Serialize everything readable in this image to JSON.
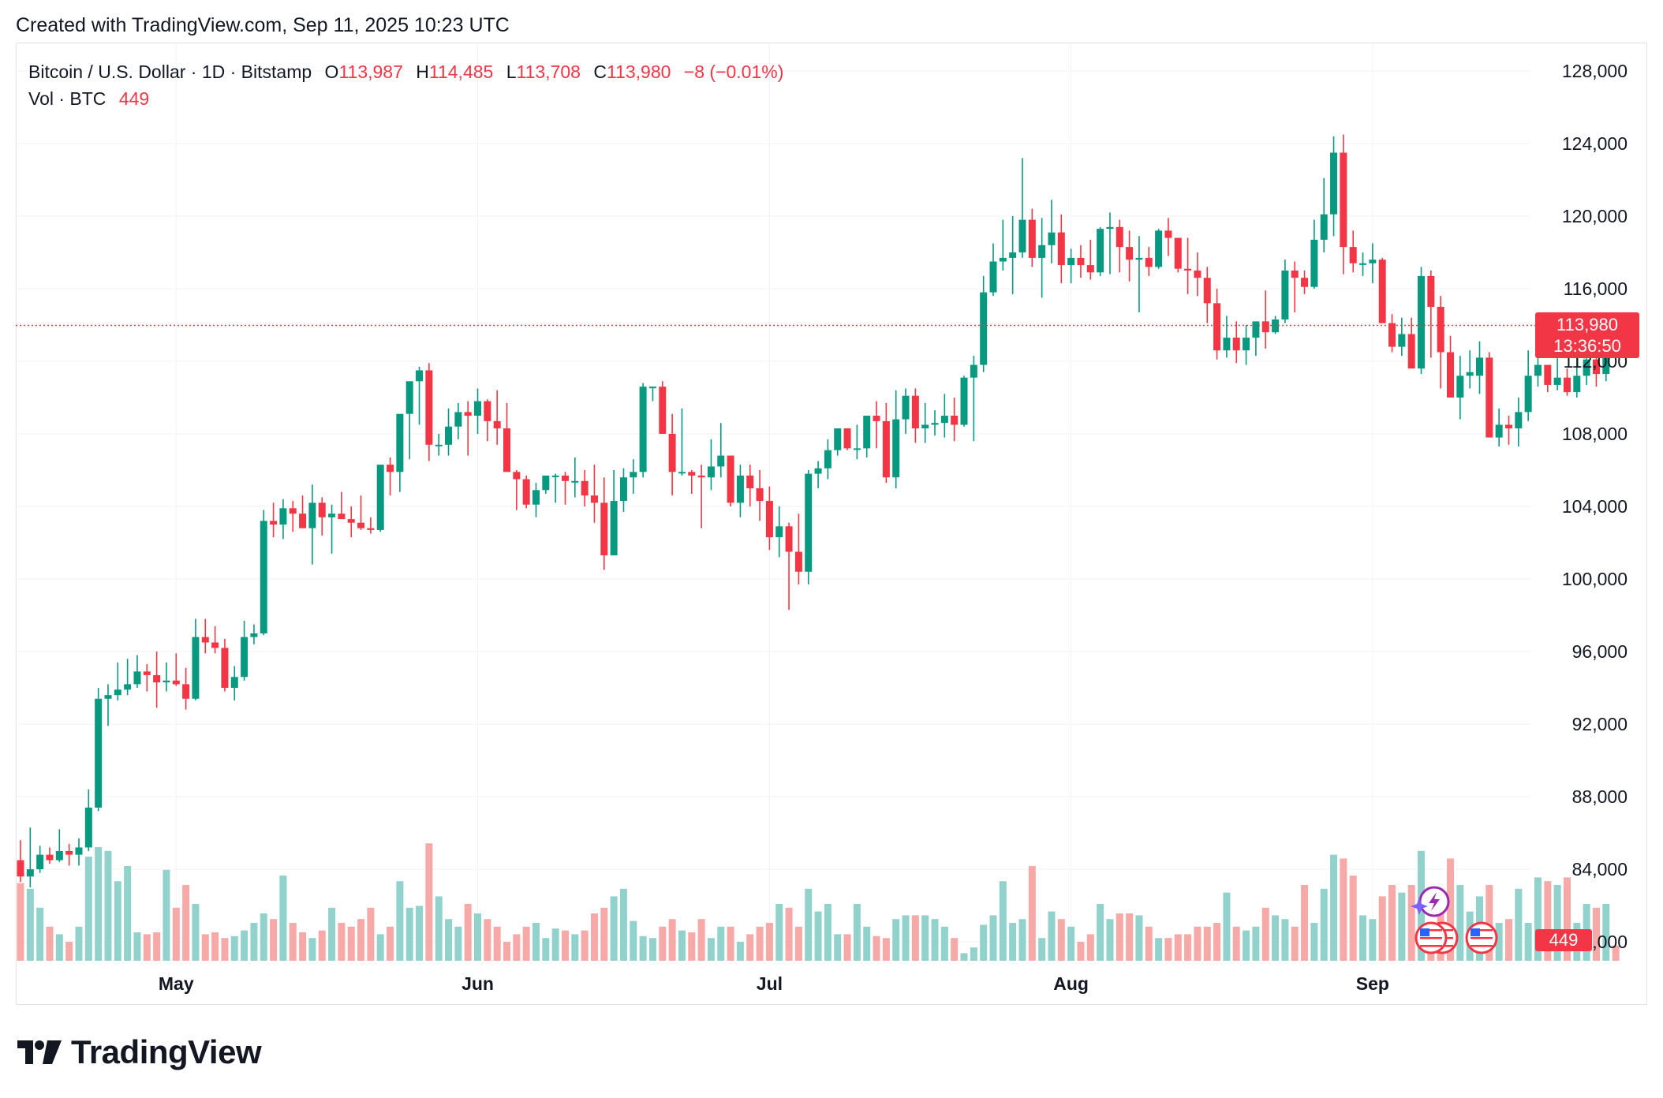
{
  "header": {
    "created_text": "Created with TradingView.com, Sep 11, 2025 10:23 UTC"
  },
  "legend": {
    "symbol_line": "Bitcoin / U.S. Dollar · 1D · Bitstamp",
    "open_label": "O",
    "open_value": "113,987",
    "high_label": "H",
    "high_value": "114,485",
    "low_label": "L",
    "low_value": "113,708",
    "close_label": "C",
    "close_value": "113,980",
    "change": "−8 (−0.01%)",
    "vol_label": "Vol · BTC",
    "vol_value": "449"
  },
  "price_tag": {
    "price": "113,980",
    "countdown": "13:36:50"
  },
  "volume_tag": {
    "value": "449"
  },
  "footer": {
    "brand": "TradingView"
  },
  "colors": {
    "up": "#089981",
    "down": "#f23645",
    "up_vol": "#92d2cc",
    "down_vol": "#f7a9a7",
    "grid": "#f0f3fa"
  },
  "chart_data": {
    "type": "candlestick",
    "interval": "1D",
    "y_axis_ticks": [
      "128,000",
      "124,000",
      "120,000",
      "116,000",
      "112,000",
      "108,000",
      "104,000",
      "100,000",
      "96,000",
      "92,000",
      "88,000",
      "84,000",
      "80,000"
    ],
    "ylim": [
      80000,
      128000
    ],
    "x_axis_ticks": [
      {
        "label": "May",
        "date": "2025-05-01"
      },
      {
        "label": "Jun",
        "date": "2025-06-01"
      },
      {
        "label": "Jul",
        "date": "2025-07-01"
      },
      {
        "label": "Aug",
        "date": "2025-08-01"
      },
      {
        "label": "Sep",
        "date": "2025-09-01"
      }
    ],
    "last_close": 113980,
    "start_date": "2025-04-15",
    "ohlcv": [
      [
        84500,
        85600,
        83300,
        83600,
        41
      ],
      [
        83600,
        86300,
        83000,
        84000,
        38
      ],
      [
        84000,
        85300,
        83800,
        84800,
        28
      ],
      [
        84800,
        85200,
        84300,
        84500,
        18
      ],
      [
        84500,
        86200,
        84400,
        85000,
        14
      ],
      [
        85000,
        85400,
        84200,
        84800,
        10
      ],
      [
        84800,
        85700,
        84200,
        85200,
        18
      ],
      [
        85200,
        88400,
        85000,
        87400,
        55
      ],
      [
        87400,
        94000,
        87200,
        93400,
        60
      ],
      [
        93400,
        94200,
        91900,
        93600,
        58
      ],
      [
        93600,
        95400,
        93300,
        93900,
        42
      ],
      [
        93900,
        95600,
        93600,
        94200,
        50
      ],
      [
        94200,
        95800,
        94000,
        94900,
        15
      ],
      [
        94900,
        95300,
        93800,
        94700,
        14
      ],
      [
        94700,
        96000,
        92900,
        94300,
        15
      ],
      [
        94300,
        95400,
        93800,
        94400,
        48
      ],
      [
        94400,
        95900,
        94100,
        94200,
        28
      ],
      [
        94200,
        95100,
        92800,
        93400,
        40
      ],
      [
        93400,
        97800,
        93300,
        96800,
        30
      ],
      [
        96800,
        97800,
        95900,
        96500,
        14
      ],
      [
        96500,
        97400,
        95900,
        96200,
        15
      ],
      [
        96200,
        96700,
        93800,
        94000,
        12
      ],
      [
        94000,
        95200,
        93300,
        94600,
        13
      ],
      [
        94600,
        97700,
        94400,
        96800,
        16
      ],
      [
        96800,
        97500,
        96400,
        97000,
        20
      ],
      [
        97000,
        103800,
        96900,
        103200,
        25
      ],
      [
        103200,
        104200,
        102300,
        103000,
        22
      ],
      [
        103000,
        104400,
        102200,
        103900,
        45
      ],
      [
        103900,
        104300,
        102600,
        103600,
        20
      ],
      [
        103600,
        104600,
        102800,
        102800,
        15
      ],
      [
        102800,
        105200,
        100800,
        104200,
        12
      ],
      [
        104200,
        104500,
        102400,
        103400,
        16
      ],
      [
        103400,
        104100,
        101400,
        103600,
        28
      ],
      [
        103600,
        104800,
        103300,
        103300,
        20
      ],
      [
        103300,
        104000,
        102300,
        103100,
        18
      ],
      [
        103100,
        104600,
        102700,
        102800,
        22
      ],
      [
        102800,
        103400,
        102500,
        102700,
        28
      ],
      [
        102700,
        106300,
        102600,
        106300,
        14
      ],
      [
        106300,
        106700,
        104600,
        105900,
        18
      ],
      [
        105900,
        108300,
        104800,
        109100,
        42
      ],
      [
        109100,
        109900,
        106600,
        110900,
        28
      ],
      [
        110900,
        111700,
        108500,
        111500,
        29
      ],
      [
        111500,
        111900,
        106500,
        107400,
        62
      ],
      [
        107400,
        108000,
        106800,
        107400,
        34
      ],
      [
        107400,
        109400,
        106800,
        108400,
        22
      ],
      [
        108400,
        109700,
        107700,
        109200,
        18
      ],
      [
        109200,
        109800,
        106800,
        109000,
        30
      ],
      [
        109000,
        110500,
        108000,
        109800,
        25
      ],
      [
        109800,
        109900,
        107600,
        108700,
        22
      ],
      [
        108700,
        110400,
        107400,
        108300,
        18
      ],
      [
        108300,
        109700,
        106300,
        105900,
        10
      ],
      [
        105900,
        106000,
        103800,
        105500,
        14
      ],
      [
        105500,
        105700,
        103900,
        104100,
        18
      ],
      [
        104100,
        105300,
        103400,
        104900,
        20
      ],
      [
        104900,
        105700,
        104700,
        105700,
        12
      ],
      [
        105700,
        105800,
        104200,
        105700,
        17
      ],
      [
        105700,
        105900,
        104100,
        105400,
        16
      ],
      [
        105400,
        106700,
        104500,
        105400,
        14
      ],
      [
        105400,
        106000,
        104000,
        104600,
        16
      ],
      [
        104600,
        106300,
        103100,
        104200,
        25
      ],
      [
        104200,
        105600,
        100500,
        101300,
        28
      ],
      [
        101300,
        106000,
        101300,
        104300,
        34
      ],
      [
        104300,
        106100,
        103700,
        105600,
        38
      ],
      [
        105600,
        106600,
        104700,
        105900,
        21
      ],
      [
        105900,
        110800,
        105600,
        110600,
        13
      ],
      [
        110600,
        110600,
        109800,
        110600,
        12
      ],
      [
        110600,
        110900,
        108700,
        108000,
        18
      ],
      [
        108000,
        109100,
        104600,
        105900,
        22
      ],
      [
        105900,
        109400,
        105700,
        105900,
        16
      ],
      [
        105900,
        106000,
        104700,
        105700,
        15
      ],
      [
        105700,
        106300,
        102800,
        105600,
        22
      ],
      [
        105600,
        107700,
        104900,
        106200,
        12
      ],
      [
        106200,
        108600,
        105600,
        106800,
        18
      ],
      [
        106800,
        106600,
        104000,
        104200,
        18
      ],
      [
        104200,
        106300,
        103400,
        105700,
        10
      ],
      [
        105700,
        106300,
        104000,
        105000,
        14
      ],
      [
        105000,
        106000,
        103200,
        104300,
        18
      ],
      [
        104300,
        105100,
        101600,
        102300,
        20
      ],
      [
        102300,
        104000,
        101200,
        102900,
        30
      ],
      [
        102900,
        103100,
        98300,
        101500,
        28
      ],
      [
        101500,
        103600,
        99700,
        100400,
        18
      ],
      [
        100400,
        106000,
        99700,
        105800,
        38
      ],
      [
        105800,
        106500,
        105000,
        106100,
        26
      ],
      [
        106100,
        107700,
        105500,
        107100,
        30
      ],
      [
        107100,
        108200,
        106800,
        108300,
        14
      ],
      [
        108300,
        108300,
        107100,
        107200,
        14
      ],
      [
        107200,
        108500,
        106600,
        107200,
        30
      ],
      [
        107200,
        108900,
        106700,
        109000,
        18
      ],
      [
        109000,
        109800,
        107200,
        108700,
        13
      ],
      [
        108700,
        109700,
        105300,
        105600,
        12
      ],
      [
        105600,
        110400,
        105000,
        108800,
        22
      ],
      [
        108800,
        110500,
        108000,
        110100,
        24
      ],
      [
        110100,
        110500,
        107500,
        108300,
        24
      ],
      [
        108300,
        109700,
        107500,
        108500,
        24
      ],
      [
        108500,
        109300,
        107900,
        108600,
        22
      ],
      [
        108600,
        110200,
        107800,
        109000,
        18
      ],
      [
        109000,
        110000,
        107600,
        108500,
        12
      ],
      [
        108500,
        111200,
        108400,
        111100,
        4
      ],
      [
        111100,
        112300,
        107600,
        111800,
        7
      ],
      [
        111800,
        116700,
        111400,
        115800,
        19
      ],
      [
        115800,
        118500,
        115600,
        117500,
        24
      ],
      [
        117500,
        119800,
        117000,
        117700,
        42
      ],
      [
        117700,
        120000,
        115700,
        118000,
        20
      ],
      [
        118000,
        123200,
        117700,
        119800,
        22
      ],
      [
        119800,
        120400,
        117200,
        117700,
        50
      ],
      [
        117700,
        119900,
        115500,
        118400,
        12
      ],
      [
        118400,
        120900,
        117400,
        119100,
        26
      ],
      [
        119100,
        120100,
        116300,
        117300,
        22
      ],
      [
        117300,
        118200,
        116300,
        117700,
        18
      ],
      [
        117700,
        118400,
        116600,
        117300,
        10
      ],
      [
        117300,
        118700,
        116500,
        116900,
        14
      ],
      [
        116900,
        119400,
        116700,
        119300,
        30
      ],
      [
        119300,
        120200,
        116800,
        119400,
        22
      ],
      [
        119400,
        119800,
        116900,
        118300,
        25
      ],
      [
        118300,
        119200,
        116400,
        117600,
        25
      ],
      [
        117600,
        118900,
        114700,
        117700,
        24
      ],
      [
        117700,
        118300,
        116700,
        117200,
        18
      ],
      [
        117200,
        119300,
        117100,
        119200,
        12
      ],
      [
        119200,
        119900,
        117800,
        118800,
        12
      ],
      [
        118800,
        118800,
        116900,
        117100,
        14
      ],
      [
        117100,
        118800,
        115700,
        117000,
        14
      ],
      [
        117000,
        118000,
        115600,
        116600,
        18
      ],
      [
        116600,
        117200,
        114100,
        115200,
        18
      ],
      [
        115200,
        116000,
        112100,
        112600,
        20
      ],
      [
        112600,
        114500,
        112200,
        113300,
        36
      ],
      [
        113300,
        114200,
        111900,
        112600,
        18
      ],
      [
        112600,
        114000,
        111800,
        113300,
        16
      ],
      [
        113300,
        114100,
        112300,
        114200,
        18
      ],
      [
        114200,
        115900,
        112700,
        113600,
        28
      ],
      [
        113600,
        114500,
        113500,
        114300,
        24
      ],
      [
        114300,
        117600,
        114100,
        117000,
        22
      ],
      [
        117000,
        117500,
        114700,
        116600,
        18
      ],
      [
        116600,
        117000,
        115700,
        116100,
        40
      ],
      [
        116100,
        119800,
        116000,
        118700,
        20
      ],
      [
        118700,
        122100,
        118000,
        120100,
        38
      ],
      [
        120100,
        124400,
        118900,
        123500,
        56
      ],
      [
        123500,
        124500,
        116800,
        118300,
        54
      ],
      [
        118300,
        119200,
        116900,
        117400,
        45
      ],
      [
        117400,
        118000,
        116700,
        117400,
        24
      ],
      [
        117400,
        118500,
        116300,
        117600,
        22
      ],
      [
        117600,
        117700,
        114600,
        114100,
        34
      ],
      [
        114100,
        114600,
        112500,
        112800,
        40
      ],
      [
        112800,
        114400,
        112300,
        113500,
        36
      ],
      [
        113500,
        114400,
        111700,
        111600,
        40
      ],
      [
        111600,
        117200,
        111300,
        116700,
        58
      ],
      [
        116700,
        117000,
        112200,
        115000,
        18
      ],
      [
        115000,
        115600,
        110500,
        112500,
        32
      ],
      [
        112500,
        113400,
        110000,
        110000,
        54
      ],
      [
        110000,
        112300,
        108800,
        111200,
        40
      ],
      [
        111200,
        112600,
        110500,
        111400,
        26
      ],
      [
        111200,
        113100,
        110200,
        112200,
        34
      ],
      [
        112200,
        112500,
        107800,
        107800,
        40
      ],
      [
        107800,
        109400,
        107300,
        108500,
        20
      ],
      [
        108500,
        109000,
        107400,
        108300,
        22
      ],
      [
        108300,
        110000,
        107300,
        109200,
        38
      ],
      [
        109200,
        112600,
        108700,
        111200,
        20
      ],
      [
        111200,
        112600,
        110600,
        111800,
        44
      ],
      [
        111800,
        111600,
        110300,
        110700,
        42
      ],
      [
        110700,
        113300,
        110400,
        111100,
        40
      ],
      [
        111100,
        111600,
        110100,
        110300,
        44
      ],
      [
        110300,
        112500,
        110000,
        111200,
        20
      ],
      [
        111200,
        112600,
        110700,
        112100,
        30
      ],
      [
        112100,
        113100,
        110600,
        111300,
        28
      ],
      [
        111300,
        114500,
        110900,
        114000,
        30
      ],
      [
        113987,
        114485,
        113708,
        113980,
        8
      ]
    ]
  }
}
